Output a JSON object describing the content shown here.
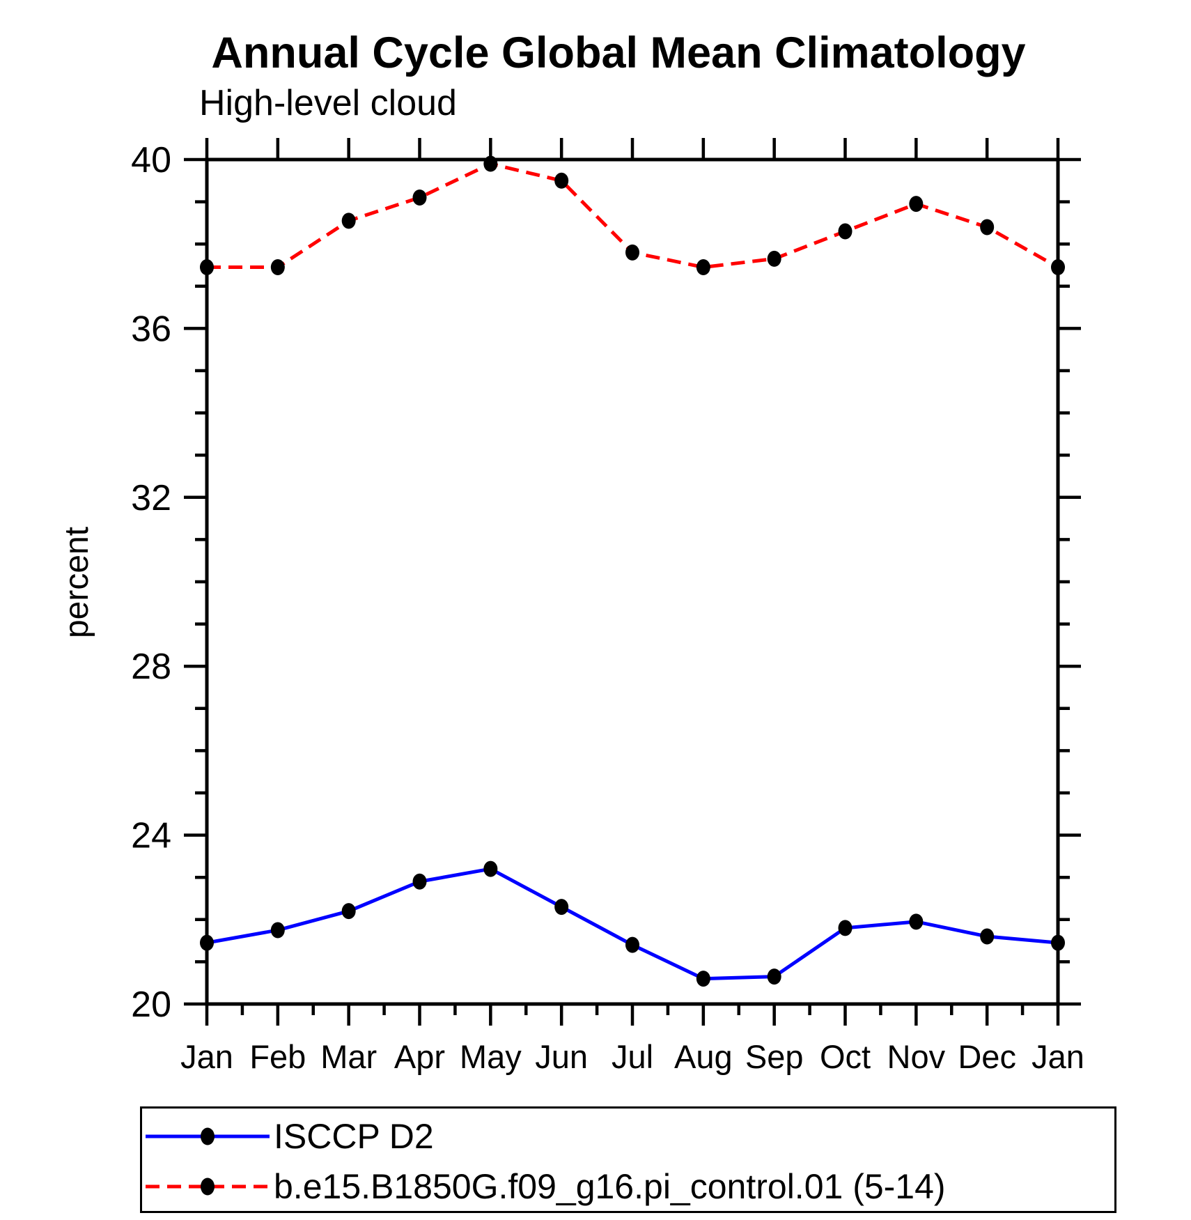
{
  "chart_data": {
    "type": "line",
    "title": "Annual Cycle Global Mean Climatology",
    "subtitle": "High-level cloud",
    "ylabel": "percent",
    "xlabel": "",
    "ylim": [
      20,
      40
    ],
    "ytick_major": [
      20,
      24,
      28,
      32,
      36,
      40
    ],
    "ytick_minor_step": 1,
    "grid": "off",
    "legend_position": "bottom-left-box",
    "categories": [
      "Jan",
      "Feb",
      "Mar",
      "Apr",
      "May",
      "Jun",
      "Jul",
      "Aug",
      "Sep",
      "Oct",
      "Nov",
      "Dec",
      "Jan"
    ],
    "series": [
      {
        "name": "ISCCP D2",
        "style": "solid",
        "color": "#0000ff",
        "marker_color": "#000000",
        "values": [
          21.45,
          21.75,
          22.2,
          22.9,
          23.2,
          22.3,
          21.4,
          20.6,
          20.65,
          21.8,
          21.95,
          21.6,
          21.45
        ]
      },
      {
        "name": "b.e15.B1850G.f09_g16.pi_control.01 (5-14)",
        "style": "dashed",
        "color": "#ff0000",
        "marker_color": "#000000",
        "values": [
          37.45,
          37.45,
          38.55,
          39.1,
          39.9,
          39.5,
          37.8,
          37.45,
          37.65,
          38.3,
          38.95,
          38.4,
          37.45
        ]
      }
    ],
    "axis_color": "#000000"
  }
}
